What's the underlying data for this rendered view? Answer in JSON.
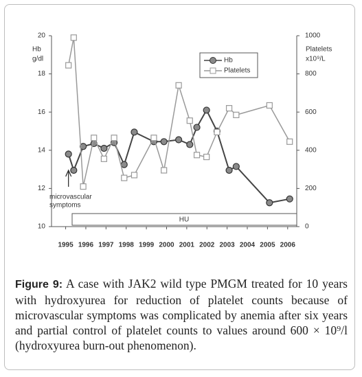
{
  "chart_data": {
    "type": "line",
    "x": [
      1995.14,
      1995.4,
      1995.87,
      1996.4,
      1996.9,
      1997.4,
      1997.9,
      1998.4,
      1999.37,
      1999.87,
      2000.6,
      2001.15,
      2001.5,
      2001.98,
      2002.5,
      2003.1,
      2003.45,
      2005.1,
      2006.1
    ],
    "xlim": [
      1994.3,
      2006.45
    ],
    "xticks": [
      1995,
      1996,
      1997,
      1998,
      1999,
      2000,
      2001,
      2002,
      2003,
      2004,
      2005,
      2006
    ],
    "ylabel": [
      "Hb",
      "g/dl"
    ],
    "y2label": [
      "Platelets",
      "x10⁹/L"
    ],
    "ylim": [
      10,
      20
    ],
    "yticks": [
      10,
      12,
      14,
      16,
      18,
      20
    ],
    "y2lim": [
      0,
      1000
    ],
    "y2ticks": [
      0,
      200,
      400,
      600,
      800,
      1000
    ],
    "series": [
      {
        "name": "Hb",
        "color": "#444444",
        "marker": "circle",
        "values": [
          13.8,
          12.95,
          14.2,
          14.35,
          14.1,
          14.4,
          13.25,
          14.95,
          14.45,
          14.45,
          14.55,
          14.3,
          15.2,
          16.1,
          15.0,
          12.95,
          13.15,
          11.25,
          11.45
        ]
      },
      {
        "name": "Platelets",
        "color": "#999999",
        "marker": "square",
        "axis": "y2",
        "values": [
          845,
          990,
          210,
          465,
          355,
          465,
          255,
          270,
          465,
          295,
          740,
          555,
          375,
          365,
          495,
          620,
          585,
          635,
          445
        ]
      }
    ],
    "annotation": [
      "microvascular",
      "symptoms"
    ],
    "band_label": "HU"
  },
  "caption": {
    "label": "Figure 9:",
    "text": "A case with JAK2 wild type PMGM treated for 10 years with hydroxyurea for reduction of platelet counts because of microvascular symptoms was complicated by anemia after six years and partial control of platelet counts to values around 600 × 10⁹/l (hydroxyurea burn-out phenomenon)."
  }
}
